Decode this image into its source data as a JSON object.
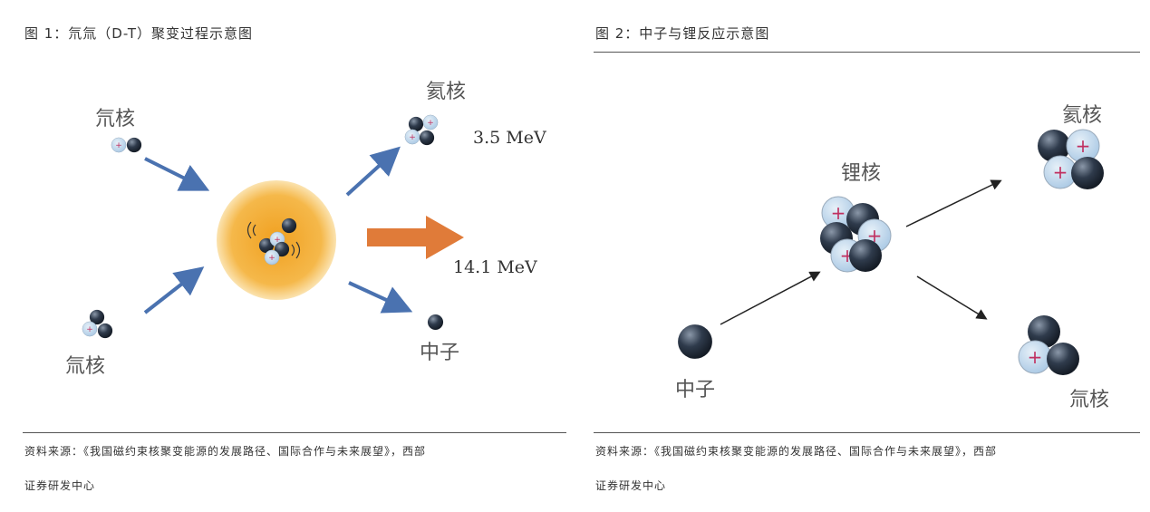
{
  "figure1": {
    "title": "图 1：氘氚（D-T）聚变过程示意图",
    "labels": {
      "deuterium": "氘核",
      "tritium": "氚核",
      "helium": "氦核",
      "neutron": "中子"
    },
    "energies": {
      "helium": "3.5 MeV",
      "neutron": "14.1 MeV"
    },
    "source_line1": "资料来源：《我国磁约束核聚变能源的发展路径、国际合作与未来展望》，西部",
    "source_line2": "证券研发中心"
  },
  "figure2": {
    "title": "图 2：中子与锂反应示意图",
    "labels": {
      "lithium": "锂核",
      "helium": "氦核",
      "tritium": "氚核",
      "neutron": "中子"
    },
    "source_line1": "资料来源：《我国磁约束核聚变能源的发展路径、国际合作与未来展望》，西部",
    "source_line2": "证券研发中心"
  },
  "colors": {
    "arrow_blue": "#4a72b0",
    "arrow_orange": "#e07b39",
    "glow": "#f2a428",
    "neutron": "#2f3b4c",
    "proton": "#b9d3ea"
  }
}
